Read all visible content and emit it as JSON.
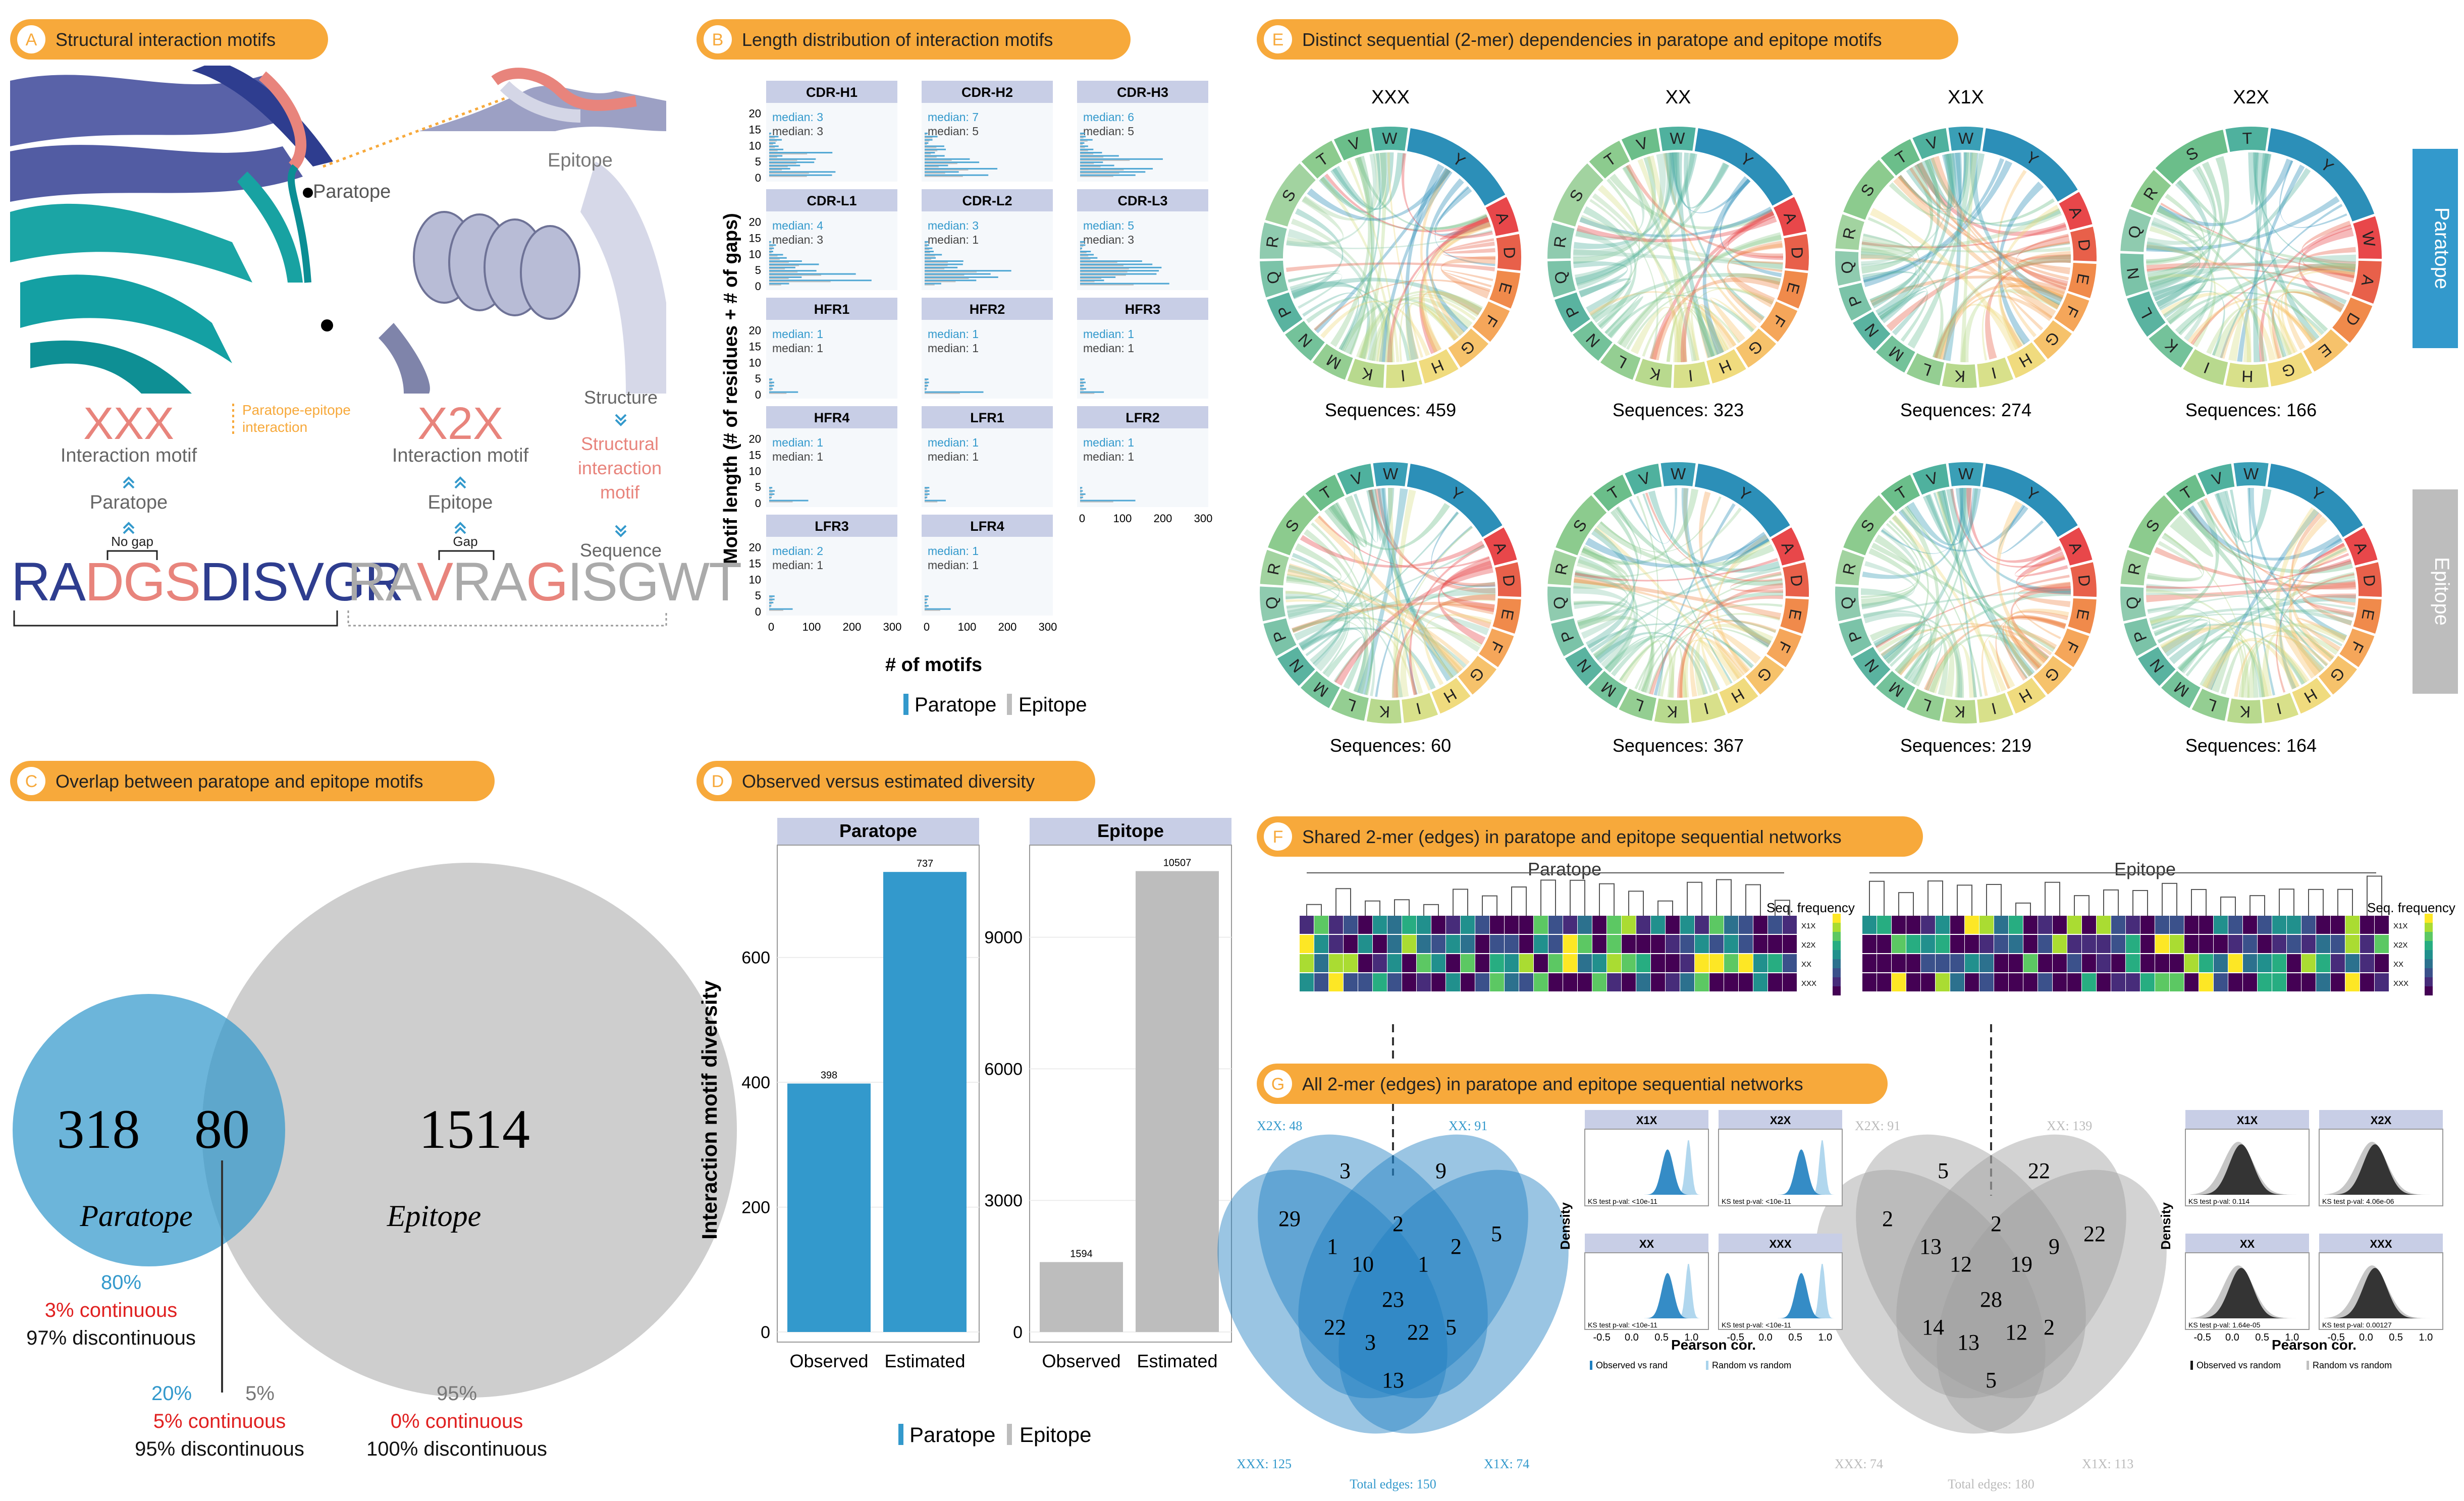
{
  "colors": {
    "orange": "#F7A93B",
    "paratope": "#3399CC",
    "epitope": "#BDBDBD",
    "red": "#E02020",
    "pink": "#E8847C",
    "navy": "#2E3D8F"
  },
  "panelA": {
    "letter": "A",
    "title": "Structural interaction motifs",
    "paratope_label": "Paratope",
    "epitope_label": "Epitope",
    "motif1": "XXX",
    "motif2": "X2X",
    "pe_interaction": "Paratope-epitope interaction",
    "interaction_motif": "Interaction motif",
    "paratope": "Paratope",
    "epitope": "Epitope",
    "no_gap": "No gap",
    "gap": "Gap",
    "structure": "Structure",
    "structural_interaction_motif": "Structural interaction motif",
    "sequence": "Sequence",
    "seq1": [
      {
        "t": "RA",
        "c": "navy"
      },
      {
        "t": "DGS",
        "c": "pink"
      },
      {
        "t": "DISVGR",
        "c": "navy"
      }
    ],
    "seq2": [
      {
        "t": "RA",
        "c": "grey"
      },
      {
        "t": "V",
        "c": "pink"
      },
      {
        "t": "RA",
        "c": "grey"
      },
      {
        "t": "G",
        "c": "pink"
      },
      {
        "t": "ISGWT",
        "c": "grey"
      }
    ]
  },
  "panelB": {
    "letter": "B",
    "title": "Length distribution of interaction motifs",
    "ylabel": "Motif length (# of residues + # of gaps)",
    "xlabel": "# of motifs",
    "yticks": [
      "0",
      "5",
      "10",
      "15",
      "20"
    ],
    "xticks": [
      "0",
      "100",
      "200",
      "300"
    ],
    "facets": [
      {
        "name": "CDR-H1",
        "median_p": "median: 3",
        "median_e": "median: 3"
      },
      {
        "name": "CDR-H2",
        "median_p": "median: 7",
        "median_e": "median: 5"
      },
      {
        "name": "CDR-H3",
        "median_p": "median: 6",
        "median_e": "median: 5"
      },
      {
        "name": "CDR-L1",
        "median_p": "median: 4",
        "median_e": "median: 3"
      },
      {
        "name": "CDR-L2",
        "median_p": "median: 3",
        "median_e": "median: 1"
      },
      {
        "name": "CDR-L3",
        "median_p": "median: 5",
        "median_e": "median: 3"
      },
      {
        "name": "HFR1",
        "median_p": "median: 1",
        "median_e": "median: 1"
      },
      {
        "name": "HFR2",
        "median_p": "median: 1",
        "median_e": "median: 1"
      },
      {
        "name": "HFR3",
        "median_p": "median: 1",
        "median_e": "median: 1"
      },
      {
        "name": "HFR4",
        "median_p": "median: 1",
        "median_e": "median: 1"
      },
      {
        "name": "LFR1",
        "median_p": "median: 1",
        "median_e": "median: 1"
      },
      {
        "name": "LFR2",
        "median_p": "median: 1",
        "median_e": "median: 1"
      },
      {
        "name": "LFR3",
        "median_p": "median: 2",
        "median_e": "median: 1"
      },
      {
        "name": "LFR4",
        "median_p": "median: 1",
        "median_e": "median: 1"
      }
    ],
    "legend": [
      "Paratope",
      "Epitope"
    ]
  },
  "panelC": {
    "letter": "C",
    "title": "Overlap between paratope and epitope motifs",
    "left": "318",
    "middle": "80",
    "right": "1514",
    "paratope_label": "Paratope",
    "epitope_label": "Epitope",
    "a_pct": "80%",
    "a_cont": "3% continuous",
    "a_disc": "97% discontinuous",
    "b_pct1": "20%",
    "b_pct2": "5%",
    "b_cont": "5% continuous",
    "b_disc": "95% discontinuous",
    "c_pct": "95%",
    "c_cont": "0% continuous",
    "c_disc": "100% discontinuous"
  },
  "panelD": {
    "letter": "D",
    "title": "Observed versus estimated diversity",
    "ylabel": "Interaction motif diversity",
    "left": {
      "strip": "Paratope",
      "yticks": [
        "0",
        "200",
        "400",
        "600"
      ],
      "ymax": 780,
      "tickvals": [
        0,
        200,
        400,
        600
      ]
    },
    "right": {
      "strip": "Epitope",
      "yticks": [
        "0",
        "3000",
        "6000",
        "9000"
      ],
      "ymax": 11100,
      "tickvals": [
        0,
        3000,
        6000,
        9000
      ]
    },
    "categories": [
      "Observed",
      "Estimated"
    ],
    "legend": [
      "Paratope",
      "Epitope"
    ]
  },
  "chart_data": [
    {
      "type": "bar",
      "title": "Paratope",
      "categories": [
        "Observed",
        "Estimated"
      ],
      "values": [
        398,
        737
      ],
      "ylabel": "Interaction motif diversity",
      "ylim": [
        0,
        780
      ],
      "color": "#3399CC"
    },
    {
      "type": "bar",
      "title": "Epitope",
      "categories": [
        "Observed",
        "Estimated"
      ],
      "values": [
        1594,
        10507
      ],
      "ylabel": "Interaction motif diversity",
      "ylim": [
        0,
        11100
      ],
      "color": "#BDBDBD"
    }
  ],
  "panelE": {
    "letter": "E",
    "title": "Distinct sequential (2-mer) dependencies in paratope and epitope motifs",
    "cols": [
      "XXX",
      "XX",
      "X1X",
      "X2X"
    ],
    "paratope_side": "Paratope",
    "epitope_side": "Epitope",
    "paratope_seqs": [
      "Sequences: 459",
      "Sequences: 323",
      "Sequences: 274",
      "Sequences: 166"
    ],
    "epitope_seqs": [
      "Sequences: 60",
      "Sequences: 367",
      "Sequences: 219",
      "Sequences: 164"
    ],
    "paratope_letters": [
      [
        "Y",
        "A",
        "D",
        "E",
        "F",
        "G",
        "H",
        "I",
        "K",
        "M",
        "N",
        "P",
        "Q",
        "R",
        "S",
        "T",
        "V",
        "W"
      ],
      [
        "Y",
        "A",
        "D",
        "E",
        "F",
        "G",
        "H",
        "I",
        "K",
        "L",
        "N",
        "P",
        "Q",
        "R",
        "S",
        "T",
        "V",
        "W"
      ],
      [
        "Y",
        "A",
        "D",
        "E",
        "F",
        "G",
        "H",
        "I",
        "K",
        "L",
        "M",
        "N",
        "P",
        "Q",
        "R",
        "S",
        "T",
        "V",
        "W"
      ],
      [
        "Y",
        "W",
        "A",
        "D",
        "E",
        "G",
        "H",
        "I",
        "K",
        "L",
        "N",
        "Q",
        "R",
        "S",
        "T"
      ]
    ],
    "epitope_letters": [
      [
        "Y",
        "A",
        "D",
        "E",
        "F",
        "G",
        "H",
        "I",
        "K",
        "L",
        "M",
        "N",
        "P",
        "Q",
        "R",
        "S",
        "T",
        "V",
        "W"
      ],
      [
        "Y",
        "A",
        "D",
        "E",
        "F",
        "G",
        "H",
        "I",
        "K",
        "L",
        "M",
        "N",
        "P",
        "Q",
        "R",
        "S",
        "T",
        "V",
        "W"
      ],
      [
        "Y",
        "A",
        "D",
        "E",
        "F",
        "G",
        "H",
        "I",
        "K",
        "L",
        "M",
        "N",
        "P",
        "Q",
        "R",
        "S",
        "T",
        "V",
        "W"
      ],
      [
        "Y",
        "A",
        "D",
        "E",
        "F",
        "G",
        "H",
        "I",
        "K",
        "L",
        "M",
        "N",
        "P",
        "Q",
        "R",
        "S",
        "T",
        "V",
        "W"
      ]
    ]
  },
  "panelF": {
    "letter": "F",
    "title": "Shared 2-mer (edges) in paratope and epitope sequential networks",
    "paratope": "Paratope",
    "epitope": "Epitope",
    "legend_title": "Seq. frequency",
    "rows_p": [
      "X1X",
      "X2X",
      "XX",
      "XXX"
    ],
    "rows_e": [
      "X1X",
      "X2X",
      "XX",
      "XXX"
    ]
  },
  "panelG": {
    "letter": "G",
    "title": "All 2-mer (edges) in paratope and epitope sequential networks",
    "p_labels": {
      "tl": "X2X: 48",
      "tr": "XX: 91",
      "bl": "XXX: 125",
      "br": "X1X: 74",
      "total": "Total edges: 150"
    },
    "p_nums": [
      "3",
      "9",
      "29",
      "1",
      "2",
      "2",
      "5",
      "10",
      "1",
      "23",
      "22",
      "3",
      "22",
      "5",
      "13"
    ],
    "e_labels": {
      "tl": "X2X: 91",
      "tr": "XX: 139",
      "bl": "XXX: 74",
      "br": "X1X: 113",
      "total": "Total edges: 180"
    },
    "e_nums": [
      "5",
      "22",
      "2",
      "13",
      "2",
      "9",
      "22",
      "12",
      "19",
      "28",
      "14",
      "13",
      "12",
      "2",
      "5"
    ],
    "density": {
      "ylabel": "Density",
      "xlabel": "Pearson cor.",
      "xticks": [
        "-0.5",
        "0.0",
        "0.5",
        "1.0"
      ],
      "p_facets": [
        {
          "name": "X1X",
          "ks": "KS test p-val: <10e-11"
        },
        {
          "name": "X2X",
          "ks": "KS test p-val: <10e-11"
        },
        {
          "name": "XX",
          "ks": "KS test p-val: <10e-11"
        },
        {
          "name": "XXX",
          "ks": "KS test p-val: <10e-11"
        }
      ],
      "e_facets": [
        {
          "name": "X1X",
          "ks": "KS test p-val: 0.114"
        },
        {
          "name": "X2X",
          "ks": "KS test p-val: 4.06e-06"
        },
        {
          "name": "XX",
          "ks": "KS test p-val: 1.64e-05"
        },
        {
          "name": "XXX",
          "ks": "KS test p-val: 0.00127"
        }
      ],
      "legend_p": [
        "Observed vs rand",
        "Random vs random"
      ],
      "legend_e": [
        "Observed vs random",
        "Random vs random"
      ]
    }
  }
}
